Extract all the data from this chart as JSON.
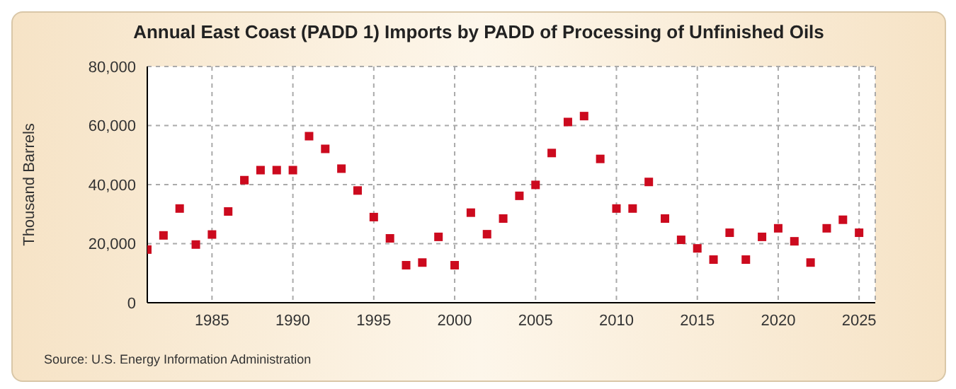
{
  "chart_data": {
    "type": "scatter",
    "title": "Annual East Coast (PADD 1) Imports by PADD of Processing of Unfinished Oils",
    "ylabel": "Thousand Barrels",
    "x": [
      1981,
      1982,
      1983,
      1984,
      1985,
      1986,
      1987,
      1988,
      1989,
      1990,
      1991,
      1992,
      1993,
      1994,
      1995,
      1996,
      1997,
      1998,
      1999,
      2000,
      2001,
      2002,
      2003,
      2004,
      2005,
      2006,
      2007,
      2008,
      2009,
      2010,
      2011,
      2012,
      2013,
      2014,
      2015,
      2016,
      2017,
      2018,
      2019,
      2020,
      2021,
      2022,
      2023,
      2024,
      2025
    ],
    "series": [
      {
        "color": "#cc0a1e",
        "values": [
          18000,
          22800,
          31900,
          19700,
          23100,
          30900,
          41500,
          44900,
          44900,
          44900,
          56400,
          52100,
          45400,
          38000,
          29000,
          21800,
          12700,
          13600,
          22300,
          12700,
          30500,
          23200,
          28500,
          36200,
          39900,
          50700,
          61200,
          63200,
          48700,
          31900,
          31900,
          40900,
          28500,
          21300,
          18400,
          14600,
          23700,
          14600,
          22300,
          25200,
          20800,
          13600,
          25200,
          28100,
          23700
        ]
      }
    ],
    "xlim": [
      1981,
      2026
    ],
    "xticks": [
      1985,
      1990,
      1995,
      2000,
      2005,
      2010,
      2015,
      2020,
      2025
    ],
    "ylim": [
      0,
      80000
    ],
    "yticks": [
      {
        "value": 0,
        "label": "0"
      },
      {
        "value": 20000,
        "label": "20,000"
      },
      {
        "value": 40000,
        "label": "40,000"
      },
      {
        "value": 60000,
        "label": "60,000"
      },
      {
        "value": 80000,
        "label": "80,000"
      }
    ],
    "grid": true,
    "marker": "square",
    "annotations": [
      "Source: U.S. Energy Information Administration"
    ]
  }
}
